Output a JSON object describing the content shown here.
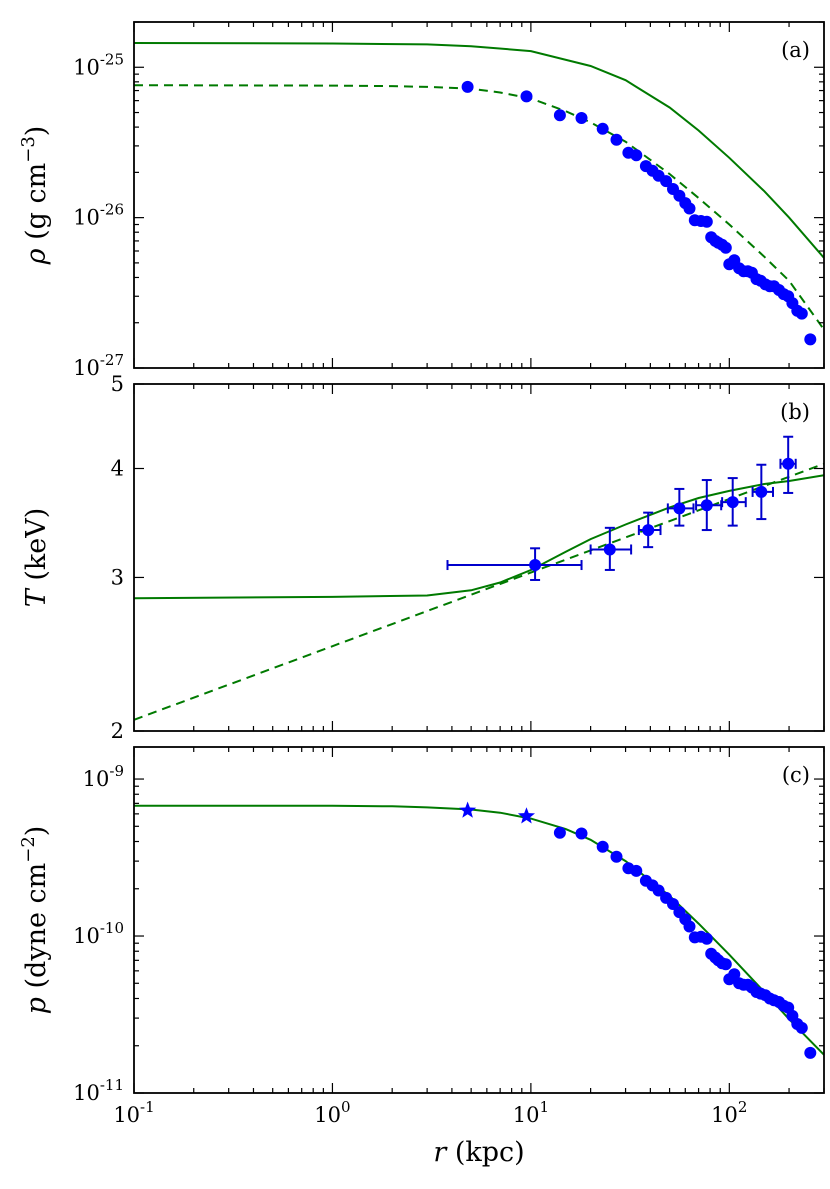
{
  "chart_data": [
    {
      "type": "scatter",
      "panel_tag": "(a)",
      "ylabel": {
        "sym": "ρ",
        "unit_open": "(g cm",
        "exp": "−3",
        "unit_close": ")"
      },
      "xscale": "log",
      "yscale": "log",
      "xlim": [
        0.1,
        300
      ],
      "ylim": [
        1e-27,
        2e-25
      ],
      "ytick_labels": [
        {
          "value": 1e-25,
          "base": "10",
          "exp": "-25"
        },
        {
          "value": 1e-26,
          "base": "10",
          "exp": "-26"
        },
        {
          "value": 1e-27,
          "base": "10",
          "exp": "-27"
        }
      ],
      "series": [
        {
          "name": "model-solid",
          "style": "line-solid",
          "x": [
            0.1,
            1,
            3,
            5,
            10,
            20,
            30,
            50,
            70,
            100,
            150,
            200,
            300
          ],
          "y": [
            1.45e-25,
            1.44e-25,
            1.42e-25,
            1.38e-25,
            1.28e-25,
            1.02e-25,
            8.2e-26,
            5.4e-26,
            3.8e-26,
            2.5e-26,
            1.5e-26,
            1e-26,
            5.4e-27
          ]
        },
        {
          "name": "model-dashed",
          "style": "line-dashed",
          "x": [
            0.1,
            1,
            2,
            3,
            5,
            7,
            10,
            15,
            20,
            30,
            50,
            70,
            100,
            150,
            200,
            300
          ],
          "y": [
            7.6e-26,
            7.55e-26,
            7.5e-26,
            7.4e-26,
            7.2e-26,
            6.8e-26,
            6.2e-26,
            5.1e-26,
            4.3e-26,
            3.2e-26,
            1.95e-26,
            1.35e-26,
            9e-27,
            5.5e-27,
            3.8e-27,
            1.8e-27
          ]
        },
        {
          "name": "observed",
          "style": "circle",
          "x": [
            4.8,
            9.5,
            14,
            18,
            23,
            27,
            31,
            34,
            38,
            41,
            44,
            48,
            52,
            56,
            60,
            63,
            67,
            72,
            77,
            81,
            85,
            88,
            92,
            96,
            100,
            106,
            112,
            118,
            124,
            130,
            137,
            144,
            152,
            160,
            168,
            178,
            188,
            198,
            208,
            220,
            232,
            256
          ],
          "y": [
            7.4e-26,
            6.4e-26,
            4.8e-26,
            4.6e-26,
            3.9e-26,
            3.3e-26,
            2.7e-26,
            2.6e-26,
            2.2e-26,
            2.05e-26,
            1.9e-26,
            1.75e-26,
            1.55e-26,
            1.4e-26,
            1.25e-26,
            1.15e-26,
            9.6e-27,
            9.5e-27,
            9.4e-27,
            7.4e-27,
            7e-27,
            6.8e-27,
            6.6e-27,
            6.3e-27,
            4.9e-27,
            5.2e-27,
            4.6e-27,
            4.4e-27,
            4.4e-27,
            4.3e-27,
            3.9e-27,
            3.8e-27,
            3.6e-27,
            3.5e-27,
            3.5e-27,
            3.3e-27,
            3.1e-27,
            3e-27,
            2.7e-27,
            2.4e-27,
            2.3e-27,
            1.55e-27
          ]
        }
      ]
    },
    {
      "type": "scatter",
      "panel_tag": "(b)",
      "ylabel": {
        "sym": "T",
        "unit": "(keV)"
      },
      "xscale": "log",
      "yscale": "log",
      "xlim": [
        0.1,
        300
      ],
      "ylim": [
        2,
        5
      ],
      "ytick_labels": [
        {
          "value": 2,
          "text": "2"
        },
        {
          "value": 3,
          "text": "3"
        },
        {
          "value": 4,
          "text": "4"
        },
        {
          "value": 5,
          "text": "5"
        }
      ],
      "series": [
        {
          "name": "model-solid",
          "style": "line-solid",
          "x": [
            0.1,
            1,
            3,
            5,
            7,
            10,
            15,
            20,
            30,
            50,
            70,
            100,
            150,
            200,
            300
          ],
          "y": [
            2.84,
            2.85,
            2.86,
            2.9,
            2.96,
            3.06,
            3.21,
            3.32,
            3.45,
            3.61,
            3.7,
            3.77,
            3.84,
            3.87,
            3.93
          ]
        },
        {
          "name": "model-dashed",
          "style": "line-dashed",
          "x": [
            0.1,
            300
          ],
          "y": [
            2.06,
            4.05
          ]
        },
        {
          "name": "observed",
          "style": "circle-errorbar",
          "x": [
            10.5,
            25,
            39,
            56,
            77,
            104,
            145,
            198
          ],
          "y": [
            3.1,
            3.23,
            3.4,
            3.6,
            3.63,
            3.66,
            3.76,
            4.05
          ],
          "xerr_low": [
            3.8,
            20,
            35,
            49,
            68,
            92,
            131,
            181
          ],
          "xerr_high": [
            18,
            32,
            45,
            66,
            91,
            121,
            166,
            216
          ],
          "yerr_low": [
            2.98,
            3.06,
            3.25,
            3.44,
            3.4,
            3.44,
            3.5,
            3.75
          ],
          "yerr_high": [
            3.24,
            3.42,
            3.56,
            3.79,
            3.88,
            3.9,
            4.04,
            4.35
          ]
        }
      ]
    },
    {
      "type": "scatter",
      "panel_tag": "(c)",
      "ylabel": {
        "sym": "p",
        "unit_open": "(dyne cm",
        "exp": "−2",
        "unit_close": ")"
      },
      "xlabel": {
        "sym": "r",
        "unit": "(kpc)"
      },
      "xscale": "log",
      "yscale": "log",
      "xlim": [
        0.1,
        300
      ],
      "ylim": [
        1e-11,
        1.6e-09
      ],
      "xtick_labels": [
        {
          "value": 0.1,
          "base": "10",
          "exp": "-1"
        },
        {
          "value": 1,
          "base": "10",
          "exp": "0"
        },
        {
          "value": 10,
          "base": "10",
          "exp": "1"
        },
        {
          "value": 100,
          "base": "10",
          "exp": "2"
        }
      ],
      "ytick_labels": [
        {
          "value": 1e-09,
          "base": "10",
          "exp": "-9"
        },
        {
          "value": 1e-10,
          "base": "10",
          "exp": "-10"
        },
        {
          "value": 1e-11,
          "base": "10",
          "exp": "-11"
        }
      ],
      "series": [
        {
          "name": "model-solid",
          "style": "line-solid",
          "x": [
            0.1,
            1,
            2,
            3,
            5,
            7,
            10,
            15,
            20,
            30,
            50,
            70,
            100,
            150,
            200,
            300
          ],
          "y": [
            6.75e-10,
            6.75e-10,
            6.7e-10,
            6.6e-10,
            6.4e-10,
            6.1e-10,
            5.6e-10,
            4.8e-10,
            4.1e-10,
            3e-10,
            1.8e-10,
            1.2e-10,
            7.6e-11,
            4.4e-11,
            2.95e-11,
            1.75e-11
          ]
        },
        {
          "name": "observed-star",
          "style": "star",
          "x": [
            4.8,
            9.5
          ],
          "y": [
            6.3e-10,
            5.8e-10
          ]
        },
        {
          "name": "observed",
          "style": "circle",
          "x": [
            14,
            18,
            23,
            27,
            31,
            34,
            38,
            41,
            44,
            48,
            52,
            56,
            60,
            63,
            67,
            72,
            77,
            81,
            85,
            88,
            92,
            96,
            100,
            106,
            112,
            118,
            124,
            130,
            137,
            144,
            152,
            160,
            168,
            178,
            188,
            198,
            208,
            220,
            232,
            256
          ],
          "y": [
            4.55e-10,
            4.5e-10,
            3.7e-10,
            3.2e-10,
            2.7e-10,
            2.6e-10,
            2.25e-10,
            2.1e-10,
            1.95e-10,
            1.75e-10,
            1.6e-10,
            1.42e-10,
            1.28e-10,
            1.15e-10,
            9.8e-11,
            9.9e-11,
            9.6e-11,
            7.7e-11,
            7.3e-11,
            7e-11,
            6.7e-11,
            6.6e-11,
            5.3e-11,
            5.7e-11,
            5e-11,
            4.9e-11,
            4.9e-11,
            4.7e-11,
            4.4e-11,
            4.3e-11,
            4.2e-11,
            4e-11,
            3.9e-11,
            3.8e-11,
            3.6e-11,
            3.5e-11,
            3.1e-11,
            2.75e-11,
            2.6e-11,
            1.8e-11
          ]
        }
      ]
    }
  ],
  "colors": {
    "model": "#007a00",
    "data": "#0000ff",
    "data_error": "#0000cc",
    "axes": "#000000"
  }
}
